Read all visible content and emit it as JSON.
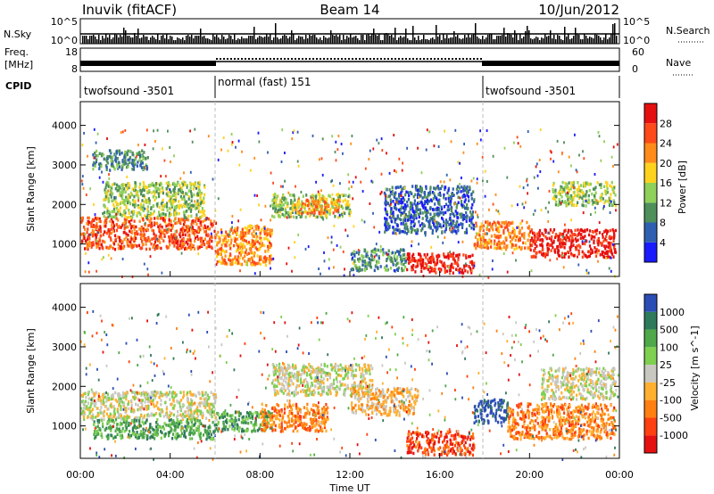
{
  "header": {
    "station": "Inuvik (fitACF)",
    "beam": "Beam 14",
    "date": "10/Jun/2012"
  },
  "header_panels": {
    "nsky_label": "N.Sky",
    "nsearch_label": "N.Search",
    "freq_label": "Freq.",
    "freq_unit": "[MHz]",
    "nave_label": "Nave",
    "cpid_label": "CPID",
    "nsky_ticks": [
      "10^5",
      "10^0"
    ],
    "nsearch_ticks": [
      "10^5",
      "10^0"
    ],
    "freq_ticks": [
      "18",
      "8"
    ],
    "nave_ticks": [
      "60",
      "0"
    ],
    "modes": [
      {
        "label": "twofsound -3501",
        "start": 0,
        "end": 6
      },
      {
        "label": "normal (fast) 151",
        "start": 6,
        "end": 18
      },
      {
        "label": "twofsound -3501",
        "start": 18,
        "end": 24
      }
    ]
  },
  "x_axis": {
    "label": "Time UT",
    "ticks": [
      "00:00",
      "04:00",
      "08:00",
      "12:00",
      "16:00",
      "20:00",
      "00:00"
    ]
  },
  "chart_data": [
    {
      "type": "heatmap",
      "quantity": "Power",
      "colorbar_label": "Power [dB]",
      "colorbar_ticks": [
        "4",
        "8",
        "12",
        "16",
        "20",
        "24",
        "28"
      ],
      "colors": [
        "#1a1aff",
        "#2f5fb0",
        "#4f8f5a",
        "#8fd05a",
        "#ffd21e",
        "#ff8c1a",
        "#ff4a1a",
        "#e61010"
      ],
      "ylabel": "Slant Range [km]",
      "yticks": [
        "1000",
        "2000",
        "3000",
        "4000"
      ],
      "ylim": [
        180,
        4600
      ],
      "xlim": [
        0,
        24
      ],
      "regions": [
        {
          "t0": 0.0,
          "t1": 6.0,
          "r0": 900,
          "r1": 1700,
          "level": 6
        },
        {
          "t0": 6.0,
          "t1": 8.5,
          "r0": 500,
          "r1": 1500,
          "level": 5
        },
        {
          "t0": 1.0,
          "t1": 5.5,
          "r0": 1700,
          "r1": 2600,
          "level": 3
        },
        {
          "t0": 8.5,
          "t1": 12.0,
          "r0": 1700,
          "r1": 2300,
          "level": 3
        },
        {
          "t0": 9.5,
          "t1": 11.5,
          "r0": 1800,
          "r1": 2200,
          "level": 5
        },
        {
          "t0": 12.0,
          "t1": 14.5,
          "r0": 350,
          "r1": 900,
          "level": 2
        },
        {
          "t0": 14.5,
          "t1": 17.5,
          "r0": 300,
          "r1": 800,
          "level": 7
        },
        {
          "t0": 17.5,
          "t1": 20.0,
          "r0": 900,
          "r1": 1600,
          "level": 5
        },
        {
          "t0": 20.0,
          "t1": 23.8,
          "r0": 700,
          "r1": 1400,
          "level": 7
        },
        {
          "t0": 13.5,
          "t1": 17.5,
          "r0": 1300,
          "r1": 2500,
          "level": 1
        },
        {
          "t0": 21.0,
          "t1": 23.8,
          "r0": 2000,
          "r1": 2600,
          "level": 3
        },
        {
          "t0": 0.5,
          "t1": 3.0,
          "r0": 2900,
          "r1": 3400,
          "level": 2
        }
      ]
    },
    {
      "type": "heatmap",
      "quantity": "Velocity",
      "colorbar_label": "Velocity [m s^-1]",
      "colorbar_ticks": [
        "1000",
        "500",
        "100",
        "25",
        "-25",
        "-100",
        "-500",
        "-1000"
      ],
      "colors": [
        "#2b4db5",
        "#2f7a5a",
        "#4fa84a",
        "#7fd050",
        "#c8c8c0",
        "#ffb030",
        "#ff8010",
        "#ff4010",
        "#e61010"
      ],
      "ylabel": "Slant Range [km]",
      "yticks": [
        "1000",
        "2000",
        "3000",
        "4000"
      ],
      "ylim": [
        180,
        4600
      ],
      "xlim": [
        0,
        24
      ],
      "regions": [
        {
          "t0": 0.0,
          "t1": 6.0,
          "r0": 1200,
          "r1": 1900,
          "level": 4
        },
        {
          "t0": 0.5,
          "t1": 6.0,
          "r0": 700,
          "r1": 1200,
          "level": 2
        },
        {
          "t0": 6.0,
          "t1": 8.5,
          "r0": 900,
          "r1": 1400,
          "level": 2
        },
        {
          "t0": 8.5,
          "t1": 13.0,
          "r0": 1800,
          "r1": 2600,
          "level": 4
        },
        {
          "t0": 8.0,
          "t1": 11.0,
          "r0": 900,
          "r1": 1600,
          "level": 6
        },
        {
          "t0": 14.5,
          "t1": 17.5,
          "r0": 300,
          "r1": 900,
          "level": 7
        },
        {
          "t0": 17.5,
          "t1": 19.0,
          "r0": 1100,
          "r1": 1700,
          "level": 0
        },
        {
          "t0": 19.0,
          "t1": 23.8,
          "r0": 700,
          "r1": 1600,
          "level": 6
        },
        {
          "t0": 20.5,
          "t1": 23.8,
          "r0": 1700,
          "r1": 2500,
          "level": 4
        },
        {
          "t0": 12.0,
          "t1": 15.0,
          "r0": 1300,
          "r1": 2000,
          "level": 5
        }
      ]
    }
  ]
}
